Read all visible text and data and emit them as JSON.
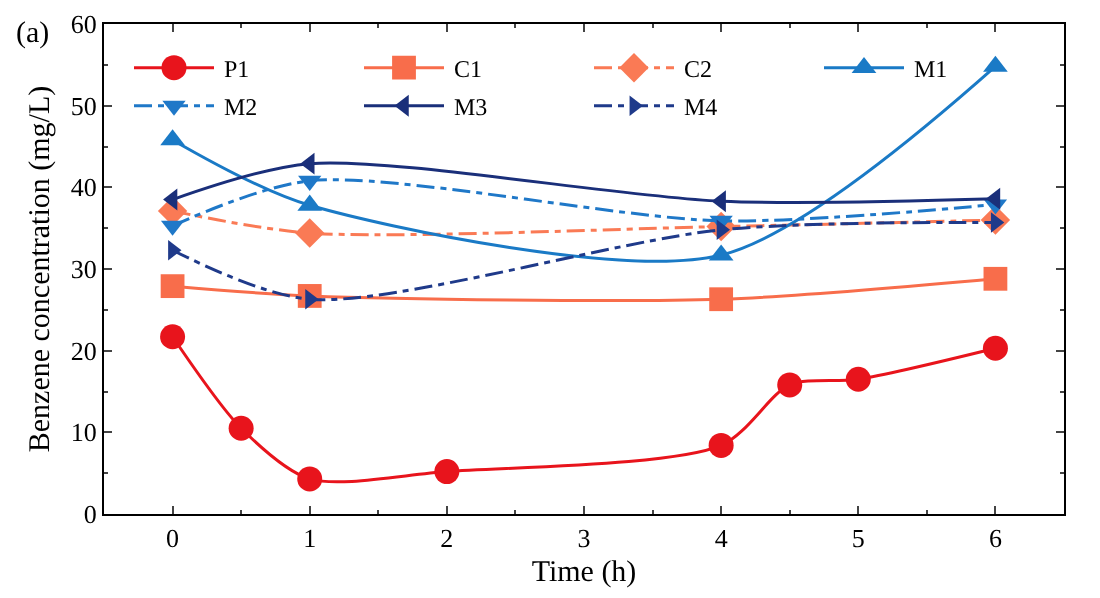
{
  "chart_data": {
    "type": "line",
    "xlabel": "Time (h)",
    "ylabel": "Benzene concentration (mg/L)",
    "annotations": [
      "(a)"
    ],
    "xlim": [
      -0.5,
      6.5
    ],
    "xticks": [
      0,
      1,
      2,
      3,
      4,
      5,
      6
    ],
    "ylim": [
      0,
      60
    ],
    "yticks": [
      0,
      10,
      20,
      30,
      40,
      50,
      60
    ],
    "grid": false,
    "legend": "top",
    "series": [
      {
        "name": "P1",
        "color": "#e8141c",
        "marker": "circle",
        "line_style": "solid",
        "x": [
          0,
          0.5,
          1,
          2,
          4,
          4.5,
          5,
          6
        ],
        "values": [
          21.7,
          10.5,
          4.3,
          5.2,
          8.4,
          15.8,
          16.5,
          20.3
        ]
      },
      {
        "name": "C1",
        "color": "#f86d4b",
        "marker": "square",
        "line_style": "solid",
        "x": [
          0,
          1,
          4,
          6
        ],
        "values": [
          27.9,
          26.7,
          26.3,
          28.8
        ]
      },
      {
        "name": "C2",
        "color": "#fa7a55",
        "marker": "diamond",
        "line_style": "dashdot",
        "x": [
          0,
          1,
          4,
          6
        ],
        "values": [
          37.1,
          34.4,
          35.2,
          36.0
        ]
      },
      {
        "name": "M1",
        "color": "#1a7ac6",
        "marker": "triangle",
        "line_style": "solid",
        "x": [
          0,
          1,
          4,
          6
        ],
        "values": [
          45.8,
          37.8,
          31.7,
          54.8
        ]
      },
      {
        "name": "M2",
        "color": "#1f78c8",
        "marker": "triangle-down",
        "line_style": "dashdot",
        "x": [
          0,
          1,
          4,
          6
        ],
        "values": [
          35.3,
          40.8,
          35.9,
          37.9
        ]
      },
      {
        "name": "M3",
        "color": "#1a2f7a",
        "marker": "triangle-left",
        "line_style": "solid",
        "x": [
          0,
          1,
          4,
          6
        ],
        "values": [
          38.5,
          42.9,
          38.3,
          38.6
        ]
      },
      {
        "name": "M4",
        "color": "#1f3a8a",
        "marker": "triangle-right",
        "line_style": "dashdot",
        "x": [
          0,
          1,
          4,
          6
        ],
        "values": [
          32.3,
          26.3,
          34.8,
          35.7
        ]
      }
    ]
  }
}
